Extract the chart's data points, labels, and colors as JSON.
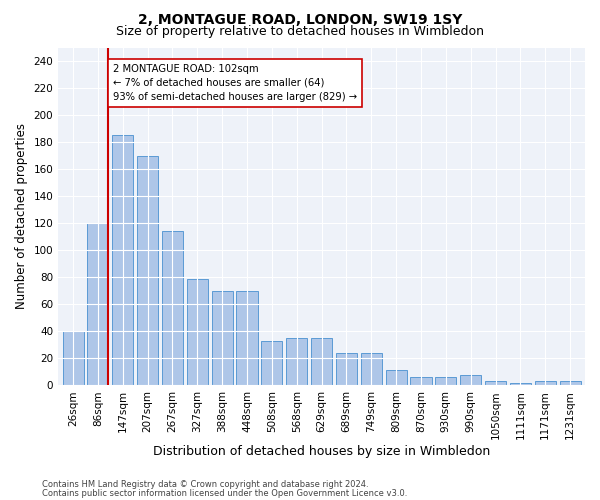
{
  "title": "2, MONTAGUE ROAD, LONDON, SW19 1SY",
  "subtitle": "Size of property relative to detached houses in Wimbledon",
  "xlabel": "Distribution of detached houses by size in Wimbledon",
  "ylabel": "Number of detached properties",
  "bar_labels": [
    "26sqm",
    "86sqm",
    "147sqm",
    "207sqm",
    "267sqm",
    "327sqm",
    "388sqm",
    "448sqm",
    "508sqm",
    "568sqm",
    "629sqm",
    "689sqm",
    "749sqm",
    "809sqm",
    "870sqm",
    "930sqm",
    "990sqm",
    "1050sqm",
    "1111sqm",
    "1171sqm",
    "1231sqm"
  ],
  "bar_values": [
    40,
    120,
    185,
    170,
    114,
    79,
    70,
    70,
    33,
    35,
    35,
    24,
    24,
    11,
    6,
    6,
    8,
    3,
    2,
    3,
    3
  ],
  "bar_color": "#aec6e8",
  "bar_edge_color": "#5b9bd5",
  "vline_color": "#cc0000",
  "annotation_text": "2 MONTAGUE ROAD: 102sqm\n← 7% of detached houses are smaller (64)\n93% of semi-detached houses are larger (829) →",
  "annotation_box_color": "#ffffff",
  "annotation_box_edge": "#cc0000",
  "ylim": [
    0,
    250
  ],
  "yticks": [
    0,
    20,
    40,
    60,
    80,
    100,
    120,
    140,
    160,
    180,
    200,
    220,
    240
  ],
  "footer_line1": "Contains HM Land Registry data © Crown copyright and database right 2024.",
  "footer_line2": "Contains public sector information licensed under the Open Government Licence v3.0.",
  "bg_color": "#eef2f9",
  "title_fontsize": 10,
  "subtitle_fontsize": 9,
  "axis_label_fontsize": 8.5,
  "tick_fontsize": 7.5,
  "footer_fontsize": 6.0
}
